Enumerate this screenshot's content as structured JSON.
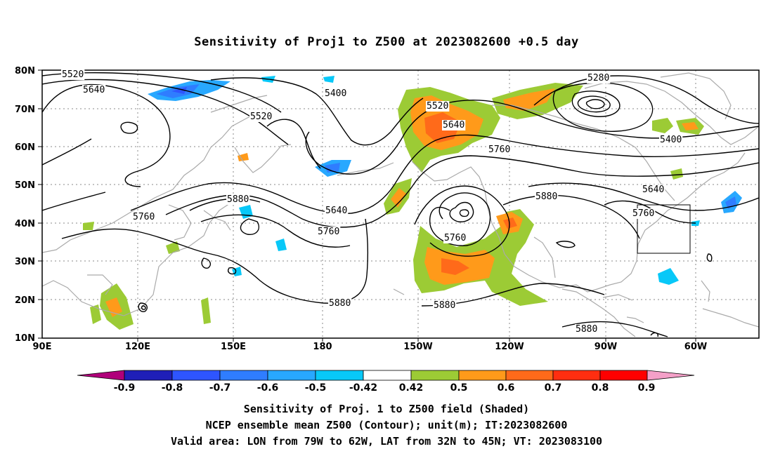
{
  "title": "Sensitivity of Proj1 to Z500 at 2023082600 +0.5 day",
  "lat_labels": [
    "80N",
    "70N",
    "60N",
    "50N",
    "40N",
    "30N",
    "20N",
    "10N"
  ],
  "lon_labels": [
    "90E",
    "120E",
    "150E",
    "180",
    "150W",
    "120W",
    "90W",
    "60W"
  ],
  "contour_labels": [
    {
      "text": "5520"
    },
    {
      "text": "5640"
    },
    {
      "text": "5520"
    },
    {
      "text": "5400"
    },
    {
      "text": "5520"
    },
    {
      "text": "5640"
    },
    {
      "text": "5760"
    },
    {
      "text": "5280"
    },
    {
      "text": "5400"
    },
    {
      "text": "5640"
    },
    {
      "text": "5760"
    },
    {
      "text": "5880"
    },
    {
      "text": "5760"
    },
    {
      "text": "5880"
    },
    {
      "text": "5640"
    },
    {
      "text": "5760"
    },
    {
      "text": "5760"
    },
    {
      "text": "5880"
    },
    {
      "text": "5880"
    },
    {
      "text": "5880"
    }
  ],
  "colorbar": {
    "labels": [
      "-0.9",
      "-0.8",
      "-0.7",
      "-0.6",
      "-0.5",
      "-0.42",
      "0.42",
      "0.5",
      "0.6",
      "0.7",
      "0.8",
      "0.9"
    ],
    "colors": [
      "#b0007a",
      "#1f1fb8",
      "#2e55ff",
      "#2f7dff",
      "#28a8ff",
      "#08c8f8",
      "#ffffff",
      "#9ccb35",
      "#ff9a1a",
      "#ff6a1a",
      "#ff2e10",
      "#ff0000",
      "#f4a0c8"
    ]
  },
  "captions": [
    "Sensitivity of Proj. 1 to Z500 field (Shaded)",
    "NCEP ensemble mean Z500 (Contour); unit(m); IT:2023082600",
    "Valid area: LON from 79W to 62W, LAT from 32N to 45N; VT: 2023083100"
  ]
}
